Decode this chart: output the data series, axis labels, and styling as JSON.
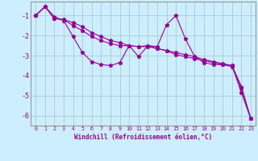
{
  "xlabel": "Windchill (Refroidissement éolien,°C)",
  "background_color": "#cceeff",
  "line_color": "#990099",
  "grid_color": "#aacccc",
  "xlim": [
    -0.5,
    23.5
  ],
  "ylim": [
    -6.5,
    -0.3
  ],
  "yticks": [
    -1,
    -2,
    -3,
    -4,
    -5,
    -6
  ],
  "xticks": [
    0,
    1,
    2,
    3,
    4,
    5,
    6,
    7,
    8,
    9,
    10,
    11,
    12,
    13,
    14,
    15,
    16,
    17,
    18,
    19,
    20,
    21,
    22,
    23
  ],
  "series1_x": [
    0,
    1,
    2,
    3,
    4,
    5,
    6,
    7,
    8,
    9,
    10,
    11,
    12,
    13,
    14,
    15,
    16,
    17,
    18,
    19,
    20,
    21,
    22,
    23
  ],
  "series1_y": [
    -1.0,
    -0.55,
    -1.05,
    -1.25,
    -2.05,
    -2.85,
    -3.3,
    -3.45,
    -3.5,
    -3.35,
    -2.5,
    -3.05,
    -2.5,
    -2.55,
    -1.45,
    -1.0,
    -2.15,
    -3.05,
    -3.35,
    -3.45,
    -3.45,
    -3.5,
    -4.85,
    -6.15
  ],
  "series2_x": [
    0,
    1,
    2,
    3,
    4,
    5,
    6,
    7,
    8,
    9,
    10,
    11,
    12,
    13,
    14,
    15,
    16,
    17,
    18,
    19,
    20,
    21,
    22,
    23
  ],
  "series2_y": [
    -1.0,
    -0.55,
    -1.15,
    -1.2,
    -1.35,
    -1.55,
    -1.85,
    -2.05,
    -2.25,
    -2.35,
    -2.5,
    -2.55,
    -2.5,
    -2.65,
    -2.75,
    -2.85,
    -2.95,
    -3.05,
    -3.2,
    -3.3,
    -3.4,
    -3.5,
    -4.55,
    -6.15
  ],
  "series3_x": [
    0,
    1,
    2,
    3,
    4,
    5,
    6,
    7,
    8,
    9,
    10,
    11,
    12,
    13,
    14,
    15,
    16,
    17,
    18,
    19,
    20,
    21,
    22,
    23
  ],
  "series3_y": [
    -1.0,
    -0.55,
    -1.15,
    -1.2,
    -1.5,
    -1.75,
    -2.05,
    -2.25,
    -2.4,
    -2.5,
    -2.5,
    -2.55,
    -2.55,
    -2.65,
    -2.75,
    -2.95,
    -3.05,
    -3.15,
    -3.25,
    -3.35,
    -3.45,
    -3.55,
    -4.65,
    -6.15
  ]
}
